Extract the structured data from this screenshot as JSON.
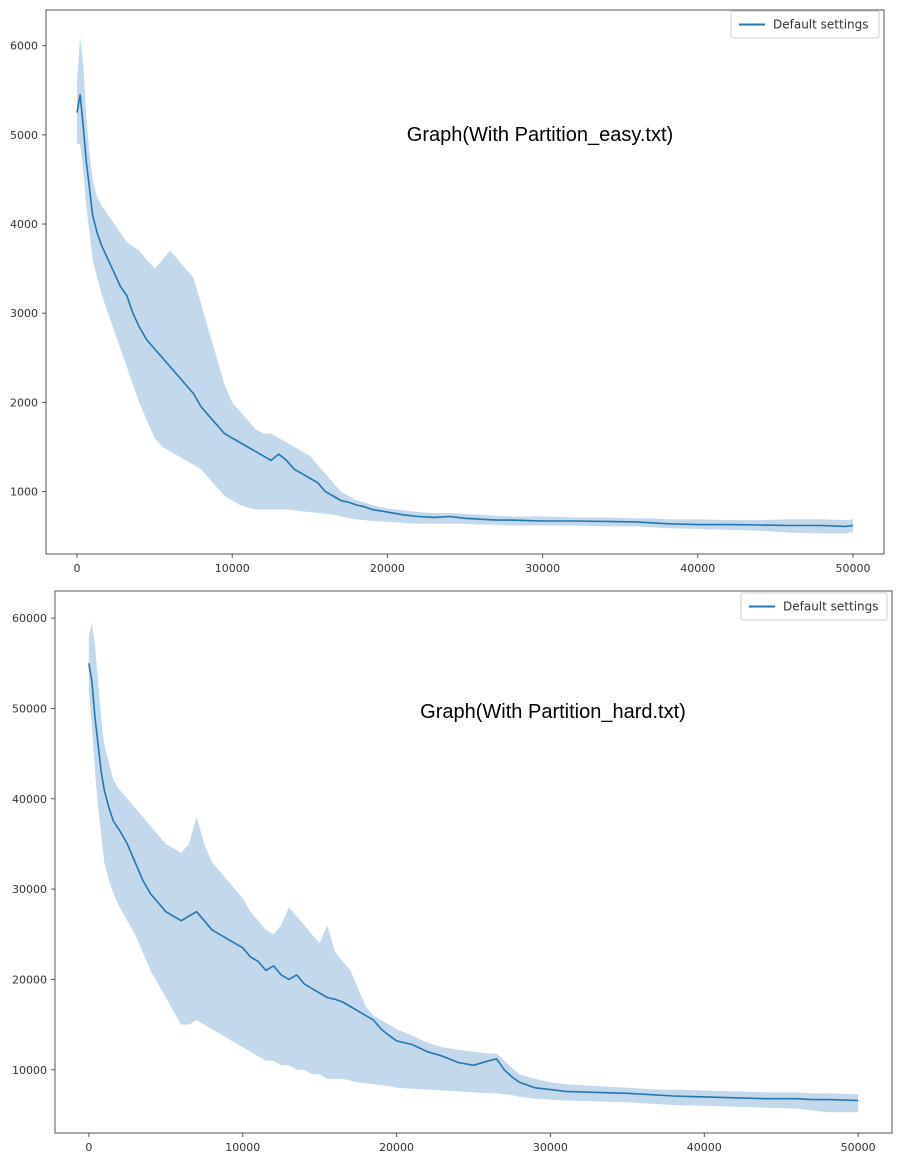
{
  "chart_data": [
    {
      "type": "line",
      "annotation": "Graph(With Partition_easy.txt)",
      "legend": {
        "entries": [
          "Default settings"
        ],
        "position": "top-right"
      },
      "xlim": [
        -2000,
        52000
      ],
      "ylim": [
        300,
        6400
      ],
      "xticks": [
        0,
        10000,
        20000,
        30000,
        40000,
        50000
      ],
      "yticks": [
        1000,
        2000,
        3000,
        4000,
        5000,
        6000
      ],
      "grid": false,
      "colors": {
        "line": "#1f77b4",
        "band": "#aecbe6"
      },
      "series": [
        {
          "name": "Default settings",
          "x": [
            0,
            200,
            400,
            600,
            800,
            1000,
            1300,
            1600,
            2000,
            2400,
            2800,
            3200,
            3600,
            4000,
            4500,
            5000,
            5500,
            6000,
            6500,
            7000,
            7500,
            8000,
            8500,
            9000,
            9500,
            10000,
            10500,
            11000,
            11500,
            12000,
            12500,
            13000,
            13500,
            14000,
            14500,
            15000,
            15500,
            16000,
            16500,
            17000,
            17500,
            18000,
            18500,
            19000,
            20000,
            21000,
            22000,
            23000,
            24000,
            25000,
            26000,
            27000,
            28000,
            30000,
            32000,
            34000,
            36000,
            37000,
            38000,
            40000,
            42000,
            44000,
            46000,
            48000,
            49500,
            50000
          ],
          "y": [
            5250,
            5450,
            5100,
            4700,
            4400,
            4100,
            3900,
            3750,
            3600,
            3450,
            3300,
            3200,
            3000,
            2850,
            2700,
            2600,
            2500,
            2400,
            2300,
            2200,
            2100,
            1950,
            1850,
            1750,
            1650,
            1600,
            1550,
            1500,
            1450,
            1400,
            1350,
            1420,
            1350,
            1250,
            1200,
            1150,
            1100,
            1000,
            950,
            900,
            880,
            850,
            830,
            800,
            770,
            740,
            720,
            710,
            720,
            700,
            690,
            680,
            680,
            670,
            670,
            665,
            660,
            650,
            640,
            630,
            630,
            625,
            620,
            620,
            610,
            620
          ],
          "band_upper": [
            5600,
            6100,
            5800,
            5200,
            4800,
            4500,
            4300,
            4200,
            4100,
            4000,
            3900,
            3800,
            3750,
            3700,
            3600,
            3500,
            3600,
            3700,
            3600,
            3500,
            3400,
            3100,
            2800,
            2500,
            2200,
            2000,
            1900,
            1800,
            1700,
            1650,
            1650,
            1600,
            1550,
            1500,
            1450,
            1400,
            1300,
            1200,
            1100,
            1000,
            950,
            900,
            880,
            850,
            810,
            790,
            770,
            760,
            760,
            750,
            740,
            730,
            720,
            720,
            710,
            710,
            700,
            700,
            690,
            690,
            680,
            680,
            690,
            690,
            680,
            690
          ],
          "band_lower": [
            4900,
            4900,
            4600,
            4200,
            3900,
            3600,
            3400,
            3200,
            3000,
            2800,
            2600,
            2400,
            2200,
            2000,
            1800,
            1600,
            1500,
            1450,
            1400,
            1350,
            1300,
            1250,
            1150,
            1050,
            950,
            900,
            850,
            820,
            800,
            800,
            800,
            800,
            800,
            790,
            780,
            770,
            760,
            750,
            740,
            720,
            700,
            690,
            680,
            670,
            660,
            650,
            640,
            640,
            640,
            640,
            630,
            630,
            620,
            620,
            620,
            610,
            610,
            600,
            590,
            580,
            570,
            560,
            540,
            530,
            530,
            550
          ]
        }
      ]
    },
    {
      "type": "line",
      "annotation": "Graph(With Partition_hard.txt)",
      "legend": {
        "entries": [
          "Default settings"
        ],
        "position": "top-right"
      },
      "xlim": [
        -2200,
        52200
      ],
      "ylim": [
        3000,
        63000
      ],
      "xticks": [
        0,
        10000,
        20000,
        30000,
        40000,
        50000
      ],
      "yticks": [
        10000,
        20000,
        30000,
        40000,
        50000,
        60000
      ],
      "grid": false,
      "colors": {
        "line": "#1f77b4",
        "band": "#aecbe6"
      },
      "series": [
        {
          "name": "Default settings",
          "x": [
            0,
            200,
            400,
            600,
            800,
            1000,
            1300,
            1600,
            2000,
            2500,
            3000,
            3500,
            4000,
            4500,
            5000,
            5500,
            6000,
            6500,
            7000,
            7500,
            8000,
            8500,
            9000,
            9500,
            10000,
            10500,
            11000,
            11500,
            12000,
            12500,
            13000,
            13500,
            14000,
            14500,
            15000,
            15500,
            16000,
            16500,
            17000,
            17500,
            18000,
            18500,
            19000,
            19500,
            20000,
            21000,
            22000,
            23000,
            24000,
            25000,
            26000,
            26500,
            27000,
            27500,
            28000,
            29000,
            30000,
            31000,
            33000,
            35000,
            36000,
            37000,
            38000,
            40000,
            42000,
            44000,
            46000,
            47000,
            48000,
            50000
          ],
          "y": [
            55000,
            53000,
            49000,
            46000,
            43000,
            41000,
            39000,
            37500,
            36500,
            35000,
            33000,
            31000,
            29500,
            28500,
            27500,
            27000,
            26500,
            27000,
            27500,
            26500,
            25500,
            25000,
            24500,
            24000,
            23500,
            22500,
            22000,
            21000,
            21500,
            20500,
            20000,
            20500,
            19500,
            19000,
            18500,
            18000,
            17800,
            17500,
            17000,
            16500,
            16000,
            15500,
            14500,
            13800,
            13200,
            12800,
            12000,
            11500,
            10800,
            10500,
            11000,
            11200,
            10000,
            9200,
            8600,
            8000,
            7800,
            7600,
            7500,
            7400,
            7300,
            7200,
            7100,
            7000,
            6900,
            6800,
            6800,
            6700,
            6700,
            6600
          ],
          "band_upper": [
            58000,
            59500,
            57000,
            53000,
            49000,
            46000,
            44000,
            42000,
            41000,
            40000,
            39000,
            38000,
            37000,
            36000,
            35000,
            34500,
            34000,
            35000,
            38000,
            35000,
            33000,
            32000,
            31000,
            30000,
            29000,
            27500,
            26500,
            25500,
            25000,
            26000,
            28000,
            27000,
            26000,
            25000,
            24000,
            26000,
            23000,
            22000,
            21000,
            19000,
            17000,
            16000,
            15500,
            15000,
            14500,
            13800,
            13000,
            12500,
            12200,
            12000,
            11800,
            11800,
            11000,
            10200,
            9500,
            9000,
            8600,
            8400,
            8200,
            8000,
            7900,
            7800,
            7800,
            7700,
            7600,
            7500,
            7500,
            7400,
            7400,
            7300
          ],
          "band_lower": [
            52000,
            48000,
            43000,
            39000,
            36000,
            33000,
            31000,
            29500,
            28000,
            26500,
            25000,
            23000,
            21000,
            19500,
            18000,
            16500,
            15000,
            15000,
            15500,
            15000,
            14500,
            14000,
            13500,
            13000,
            12500,
            12000,
            11500,
            11000,
            11000,
            10500,
            10500,
            10000,
            10000,
            9500,
            9500,
            9000,
            9000,
            9000,
            8800,
            8600,
            8500,
            8400,
            8300,
            8200,
            8000,
            7900,
            7800,
            7700,
            7600,
            7500,
            7400,
            7400,
            7300,
            7200,
            7000,
            6800,
            6700,
            6600,
            6500,
            6400,
            6300,
            6200,
            6100,
            6000,
            5900,
            5800,
            5700,
            5500,
            5300,
            5300
          ]
        }
      ]
    }
  ]
}
